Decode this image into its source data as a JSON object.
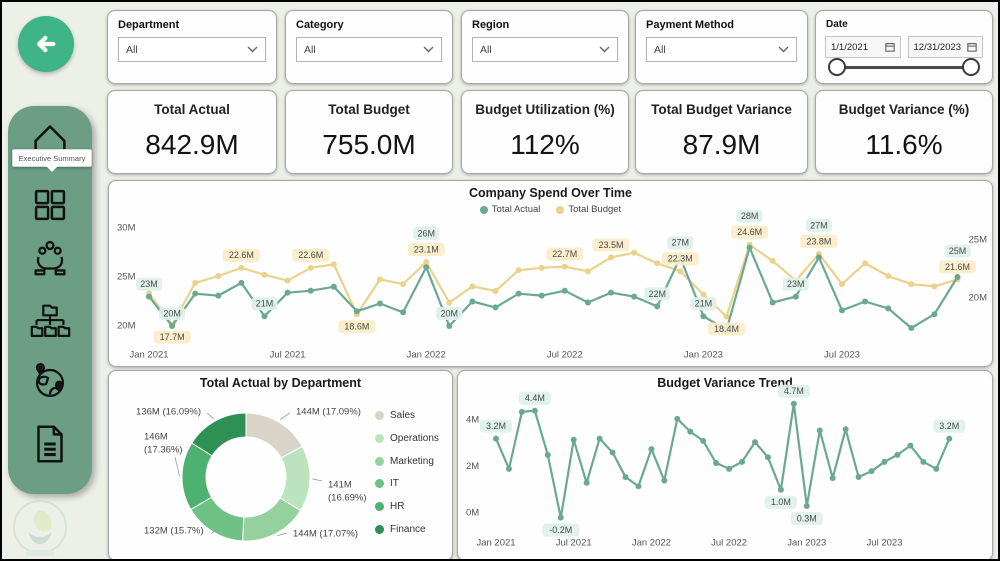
{
  "theme": {
    "accent": "#3EB488",
    "sidebar_green": "#6B9E85",
    "page_bg": "#EDEFE9",
    "actual_color": "#6BA894",
    "budget_color": "#EBD28B",
    "chip_mint": "#DFF0E9",
    "chip_yellow": "#FAEDC9"
  },
  "sidebar": {
    "tooltip": "Executive Summary",
    "items": [
      "home",
      "apps-grid",
      "team-hands",
      "org-folders",
      "globe-pins",
      "report-doc"
    ]
  },
  "filters": {
    "department": {
      "label": "Department",
      "value": "All"
    },
    "category": {
      "label": "Category",
      "value": "All"
    },
    "region": {
      "label": "Region",
      "value": "All"
    },
    "payment_method": {
      "label": "Payment Method",
      "value": "All"
    },
    "date": {
      "label": "Date",
      "start": "1/1/2021",
      "end": "12/31/2023"
    }
  },
  "kpis": [
    {
      "title": "Total Actual",
      "value": "842.9M"
    },
    {
      "title": "Total Budget",
      "value": "755.0M"
    },
    {
      "title": "Budget Utilization (%)",
      "value": "112%"
    },
    {
      "title": "Total Budget Variance",
      "value": "87.9M"
    },
    {
      "title": "Budget Variance (%)",
      "value": "11.6%"
    }
  ],
  "chart_data": [
    {
      "type": "line",
      "title": "Company Spend Over Time",
      "x_ticks": [
        "Jan 2021",
        "Jul 2021",
        "Jan 2022",
        "Jul 2022",
        "Jan 2023",
        "Jul 2023"
      ],
      "x_tick_index": [
        0,
        6,
        12,
        18,
        24,
        30
      ],
      "n_points": 36,
      "left_axis": {
        "ticks": [
          30,
          25,
          20
        ],
        "unit": "M"
      },
      "right_axis": {
        "ticks": [
          25,
          20
        ],
        "unit": "M"
      },
      "legend_position": "top",
      "series": [
        {
          "name": "Total Budget",
          "color": "#EBD28B",
          "axis": "right",
          "values": [
            20.4,
            17.7,
            21.3,
            21.9,
            22.6,
            22.0,
            21.5,
            22.6,
            22.9,
            18.6,
            21.6,
            21.2,
            23.1,
            19.6,
            21.0,
            20.6,
            22.4,
            22.6,
            22.7,
            22.3,
            23.5,
            23.9,
            23.0,
            22.3,
            20.3,
            18.4,
            24.6,
            23.2,
            21.5,
            23.8,
            21.2,
            23.0,
            21.9,
            21.2,
            21.0,
            21.6
          ],
          "point_labels": {
            "1": "17.7M",
            "4": "22.6M",
            "7": "22.6M",
            "9": "18.6M",
            "12": "23.1M",
            "18": "22.7M",
            "20": "23.5M",
            "23": "22.3M",
            "25": "18.4M",
            "26": "24.6M",
            "29": "23.8M",
            "35": "21.6M"
          }
        },
        {
          "name": "Total Actual",
          "color": "#6BA894",
          "axis": "left",
          "values": [
            23.0,
            20.0,
            23.3,
            23.1,
            24.4,
            21.0,
            23.4,
            23.6,
            24.0,
            21.5,
            22.3,
            21.4,
            26.0,
            20.0,
            22.5,
            21.9,
            23.3,
            23.1,
            23.6,
            22.4,
            23.4,
            23.0,
            22.0,
            27.0,
            21.0,
            19.6,
            28.0,
            22.4,
            23.0,
            27.0,
            21.6,
            22.5,
            21.8,
            19.8,
            21.2,
            25.0
          ],
          "point_labels": {
            "0": "23M",
            "1": "20M",
            "5": "21M",
            "12": "26M",
            "13": "20M",
            "22": "22M",
            "23": "27M",
            "24": "21M",
            "26": "28M",
            "28": "23M",
            "29": "27M",
            "35": "25M"
          }
        }
      ]
    },
    {
      "type": "pie",
      "title": "Total Actual by Department",
      "slices": [
        {
          "label": "Sales",
          "value": "144M",
          "pct": "17.09%",
          "color": "#D8D4C7"
        },
        {
          "label": "Operations",
          "value": "141M",
          "pct": "16.69%",
          "color": "#BCE3BE"
        },
        {
          "label": "Marketing",
          "value": "144M",
          "pct": "17.07%",
          "color": "#94D19E"
        },
        {
          "label": "IT",
          "value": "132M",
          "pct": "15.7%",
          "color": "#6FC186"
        },
        {
          "label": "HR",
          "value": "146M",
          "pct": "17.36%",
          "color": "#4DB271"
        },
        {
          "label": "Finance",
          "value": "136M",
          "pct": "16.09%",
          "color": "#2E9153"
        }
      ]
    },
    {
      "type": "line",
      "title": "Budget Variance Trend",
      "x_ticks": [
        "Jan 2021",
        "Jul 2021",
        "Jan 2022",
        "Jul 2022",
        "Jan 2023",
        "Jul 2023"
      ],
      "x_tick_index": [
        0,
        6,
        12,
        18,
        24,
        30
      ],
      "n_points": 36,
      "y_axis": {
        "ticks": [
          4,
          2,
          0
        ],
        "unit": "M"
      },
      "series": [
        {
          "name": "Budget Variance",
          "color": "#6BA894",
          "values": [
            3.2,
            1.9,
            4.35,
            4.4,
            2.5,
            -0.2,
            3.15,
            1.3,
            3.2,
            2.6,
            1.55,
            1.15,
            2.75,
            1.4,
            4.05,
            3.5,
            3.1,
            2.15,
            1.9,
            2.2,
            3.05,
            2.4,
            1.0,
            4.7,
            0.3,
            3.55,
            1.5,
            3.6,
            1.55,
            1.8,
            2.2,
            2.5,
            2.9,
            2.2,
            1.9,
            3.2
          ],
          "point_labels": {
            "0": "3.2M",
            "3": "4.4M",
            "5": "-0.2M",
            "22": "1.0M",
            "23": "4.7M",
            "24": "0.3M",
            "35": "3.2M"
          }
        }
      ]
    }
  ]
}
